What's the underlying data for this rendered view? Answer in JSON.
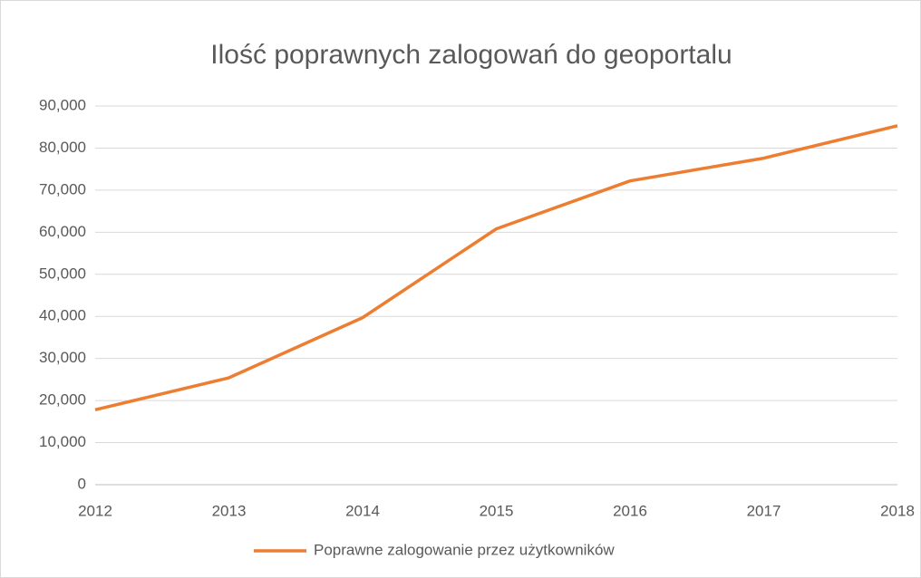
{
  "chart_data": {
    "type": "line",
    "title": "Ilość poprawnych zalogowań do geoportalu",
    "x": [
      2012,
      2013,
      2014,
      2015,
      2016,
      2017,
      2018
    ],
    "series": [
      {
        "name": "Poprawne zalogowanie przez użytkowników",
        "color": "#ed7d31",
        "values": [
          17800,
          25400,
          39700,
          60800,
          72200,
          77600,
          85300
        ]
      }
    ],
    "xlim": [
      2012,
      2018
    ],
    "xticks": [
      2012,
      2013,
      2014,
      2015,
      2016,
      2017,
      2018
    ],
    "ylim": [
      0,
      90000
    ],
    "yticks": [
      0,
      {
        "value": 10000,
        "label": "10,000"
      },
      {
        "value": 20000,
        "label": "20,000"
      },
      {
        "value": 30000,
        "label": "30,000"
      },
      {
        "value": 40000,
        "label": "40,000"
      },
      {
        "value": 50000,
        "label": "50,000"
      },
      {
        "value": 60000,
        "label": "60,000"
      },
      {
        "value": 70000,
        "label": "70,000"
      },
      {
        "value": 80000,
        "label": "80,000"
      },
      {
        "value": 90000,
        "label": "90,000"
      }
    ],
    "grid": true,
    "legend": "bottom"
  }
}
